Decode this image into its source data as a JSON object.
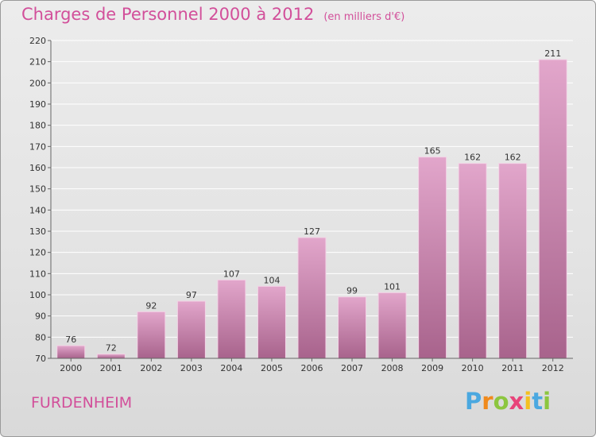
{
  "header": {
    "title": "Charges de Personnel 2000 à 2012",
    "subtitle": "(en milliers d'€)"
  },
  "footer": {
    "commune": "FURDENHEIM",
    "brand": {
      "letters": [
        "P",
        "r",
        "o",
        "x",
        "i",
        "t",
        "i"
      ],
      "colors": [
        "#4aa8e0",
        "#f08a1c",
        "#8cc63f",
        "#e8447a",
        "#f4c020",
        "#4aa8e0",
        "#8cc63f"
      ]
    }
  },
  "colors": {
    "bar_top": "#e2a6cb",
    "bar_bottom": "#a8638c",
    "bar_outline": "#f3d3e6",
    "axis": "#666666",
    "grid": "#ffffff"
  },
  "chart_data": {
    "type": "bar",
    "categories": [
      "2000",
      "2001",
      "2002",
      "2003",
      "2004",
      "2005",
      "2006",
      "2007",
      "2008",
      "2009",
      "2010",
      "2011",
      "2012"
    ],
    "values": [
      76,
      72,
      92,
      97,
      107,
      104,
      127,
      99,
      101,
      165,
      162,
      162,
      211
    ],
    "ylim": [
      70,
      220
    ],
    "yticks": [
      70,
      80,
      90,
      100,
      110,
      120,
      130,
      140,
      150,
      160,
      170,
      180,
      190,
      200,
      210,
      220
    ],
    "grid": true,
    "data_labels": true
  }
}
